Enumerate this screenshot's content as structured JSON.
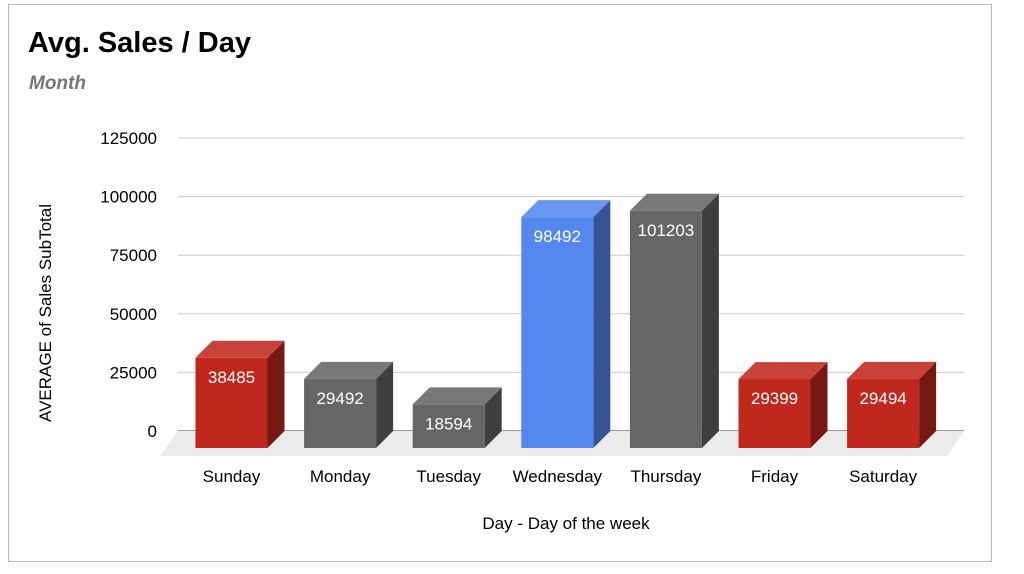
{
  "chart_data": {
    "type": "bar",
    "title": "Avg. Sales / Day",
    "subtitle": "Month",
    "xlabel": "Day - Day of the week",
    "ylabel": "AVERAGE of Sales SubTotal",
    "categories": [
      "Sunday",
      "Monday",
      "Tuesday",
      "Wednesday",
      "Thursday",
      "Friday",
      "Saturday"
    ],
    "values": [
      38485,
      29492,
      18594,
      98492,
      101203,
      29399,
      29494
    ],
    "data_labels": [
      "38485",
      "29492",
      "18594",
      "98492",
      "101203",
      "29399",
      "29494"
    ],
    "bar_colors": [
      "#c0281e",
      "#666666",
      "#666666",
      "#5588ee",
      "#666666",
      "#c0281e",
      "#c0281e"
    ],
    "y_ticks": [
      0,
      25000,
      50000,
      75000,
      100000,
      125000
    ],
    "y_tick_labels": [
      "0",
      "25000",
      "50000",
      "75000",
      "100000",
      "125000"
    ],
    "ylim": [
      0,
      125000
    ],
    "grid": true,
    "legend": "none",
    "style": "3d"
  }
}
